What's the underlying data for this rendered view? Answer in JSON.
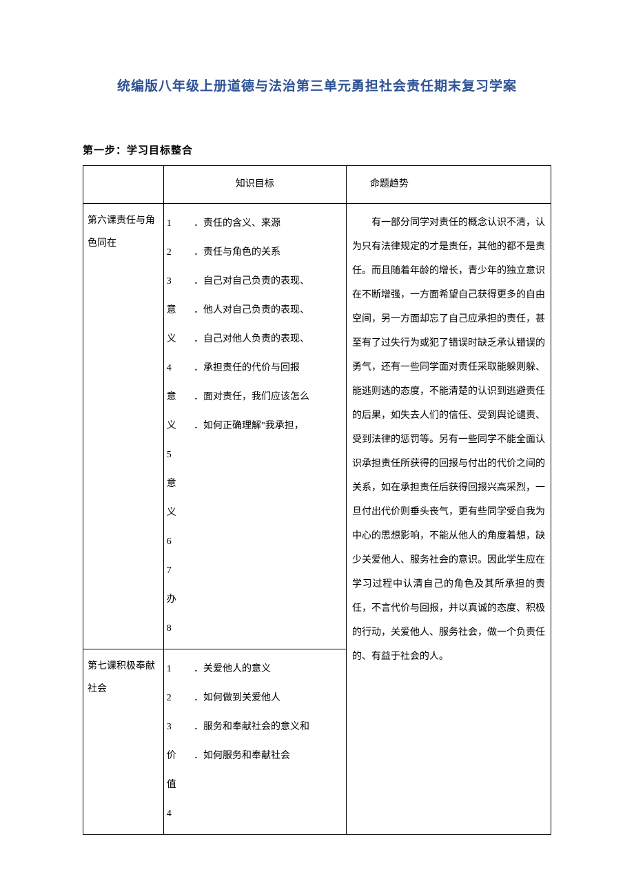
{
  "title": "统编版八年级上册道德与法治第三单元勇担社会责任期末复习学案",
  "section_header": "第一步：学习目标整合",
  "table": {
    "headers": {
      "lesson": "",
      "knowledge": "知识目标",
      "trend": "命题趋势"
    },
    "rows": [
      {
        "lesson": "第六课责任与角色同在",
        "items": [
          {
            "num": "1",
            "text": "．责任的含义、来源"
          },
          {
            "num": "2",
            "text": "．责任与角色的关系"
          },
          {
            "num": "3",
            "text": "．自己对自己负责的表现、"
          },
          {
            "num": "意义",
            "text": ""
          },
          {
            "num": "4",
            "text": "．他人对自己负责的表现、"
          },
          {
            "num": "意义",
            "text": ""
          },
          {
            "num": "5",
            "text": "．自己对他人负责的表现、"
          },
          {
            "num": "意义",
            "text": ""
          },
          {
            "num": "6",
            "text": "．承担责任的代价与回报"
          },
          {
            "num": "7",
            "text": "．面对责任，我们应该怎么"
          },
          {
            "num": "办",
            "text": ""
          },
          {
            "num": "8",
            "text": "．如何正确理解\"我承担，"
          }
        ]
      },
      {
        "lesson": "第七课积极奉献社会",
        "items": [
          {
            "num": "1",
            "text": "．关爱他人的意义"
          },
          {
            "num": "2",
            "text": "．如何做到关爱他人"
          },
          {
            "num": "3",
            "text": "．服务和奉献社会的意义和"
          },
          {
            "num": "价",
            "text": ""
          },
          {
            "num": "值",
            "text": ""
          },
          {
            "num": "4",
            "text": "．如何服务和奉献社会"
          }
        ]
      }
    ],
    "trend_text": "有一部分同学对责任的概念认识不清，认为只有法律规定的才是责任，其他的都不是责任。而且随着年龄的增长，青少年的独立意识在不断增强，一方面希望自己获得更多的自由空间，另一方面却忘了自己应承担的责任，甚至有了过失行为或犯了错误时缺乏承认错误的勇气，还有一些同学面对责任采取能躲则躲、能逃则逃的态度，不能清楚的认识到逃避责任的后果，如失去人们的信任、受到舆论谴责、受到法律的惩罚等。另有一些同学不能全面认识承担责任所获得的回报与付出的代价之间的关系，如在承担责任后获得回报兴高采烈，一旦付出代价则垂头丧气，更有些同学受自我为中心的思想影响，不能从他人的角度着想，缺少关爱他人、服务社会的意识。因此学生应在学习过程中认清自己的角色及其所承担的责任，不言代价与回报，并以真诚的态度、积极的行动，关爱他人、服务社会，做一个负责任的、有益于社会的人。"
  },
  "colors": {
    "title_color": "#2e5395",
    "text_color": "#000000",
    "border_color": "#000000",
    "background_color": "#ffffff"
  },
  "typography": {
    "title_fontsize": 19,
    "section_fontsize": 15,
    "body_fontsize": 14,
    "font_family": "SimSun"
  }
}
